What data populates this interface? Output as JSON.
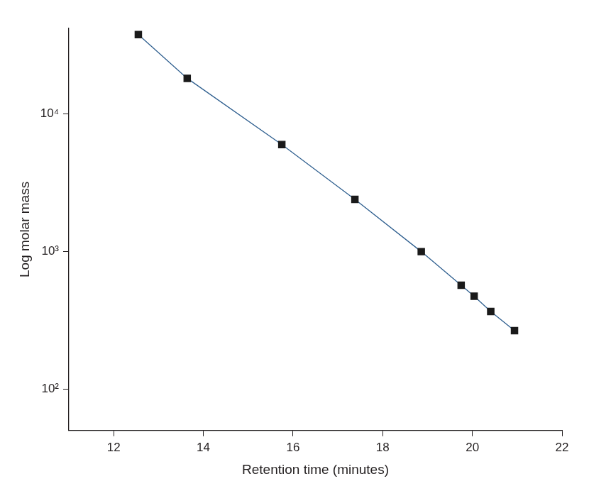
{
  "chart_data": {
    "type": "line",
    "x_label": "Retention time (minutes)",
    "y_label": "Log molar mass",
    "log": "y",
    "grid": false,
    "series": [
      {
        "color": "#2f5f8f",
        "marker": "square",
        "line_style": "solid",
        "x": [
          12.55,
          13.64,
          15.75,
          17.38,
          18.86,
          19.75,
          20.04,
          20.41,
          20.94
        ],
        "values": [
          37900,
          18200,
          6000,
          2400,
          1000,
          570,
          474,
          367,
          266
        ]
      }
    ],
    "xlim": [
      11,
      22
    ],
    "xticks": [
      12,
      14,
      16,
      18,
      20,
      22
    ],
    "ylim": [
      50,
      42000
    ],
    "yticks": [
      {
        "value": 100,
        "label": "10²"
      },
      {
        "value": 1000,
        "label": "10³"
      },
      {
        "value": 10000,
        "label": "10⁴"
      }
    ]
  }
}
